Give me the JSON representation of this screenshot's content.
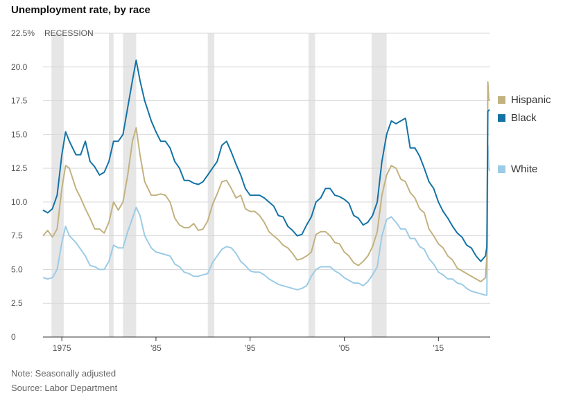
{
  "title": "Unemployment rate, by race",
  "notes": [
    "Note: Seasonally adjusted",
    "Source: Labor Department"
  ],
  "recession_label": "RECESSION",
  "colors": {
    "hispanic": "#c2b280",
    "black": "#1472a5",
    "white": "#9ccbe6",
    "recession": "#e6e6e6",
    "grid": "#d9d9d9"
  },
  "chart_data": {
    "type": "line",
    "title": "Unemployment rate, by race",
    "xlabel": "",
    "ylabel": "",
    "xlim": [
      1973.0,
      2020.5
    ],
    "ylim": [
      0,
      22.5
    ],
    "y_ticks": [
      0,
      2.5,
      5.0,
      7.5,
      10.0,
      12.5,
      15.0,
      17.5,
      20.0,
      22.5
    ],
    "y_tick_labels": [
      "0",
      "2.5",
      "5.0",
      "7.5",
      "10.0",
      "12.5",
      "15.0",
      "17.5",
      "20.0",
      "22.5%"
    ],
    "x_ticks": [
      1975,
      1985,
      1995,
      2005,
      2015
    ],
    "x_tick_labels": [
      "1975",
      "'85",
      "'95",
      "'05",
      "'15"
    ],
    "recessions": [
      [
        1973.9,
        1975.2
      ],
      [
        1980.0,
        1980.5
      ],
      [
        1981.5,
        1982.9
      ],
      [
        1990.5,
        1991.2
      ],
      [
        2001.2,
        2001.9
      ],
      [
        2007.9,
        2009.5
      ]
    ],
    "legend": [
      "Hispanic",
      "Black",
      "White"
    ],
    "series": [
      {
        "name": "Hispanic",
        "x": [
          1973.0,
          1973.5,
          1974.0,
          1974.5,
          1975.0,
          1975.4,
          1975.8,
          1976.5,
          1977.0,
          1977.5,
          1978.0,
          1978.5,
          1979.0,
          1979.5,
          1980.0,
          1980.5,
          1981.0,
          1981.5,
          1982.0,
          1982.5,
          1982.9,
          1983.3,
          1983.8,
          1984.5,
          1985.0,
          1985.5,
          1986.0,
          1986.5,
          1987.0,
          1987.5,
          1988.0,
          1988.5,
          1989.0,
          1989.5,
          1990.0,
          1990.5,
          1991.0,
          1991.5,
          1992.0,
          1992.5,
          1993.0,
          1993.5,
          1994.0,
          1994.5,
          1995.0,
          1995.5,
          1996.0,
          1996.5,
          1997.0,
          1997.5,
          1998.0,
          1998.5,
          1999.0,
          1999.5,
          2000.0,
          2000.5,
          2001.0,
          2001.5,
          2002.0,
          2002.5,
          2003.0,
          2003.5,
          2004.0,
          2004.5,
          2005.0,
          2005.5,
          2006.0,
          2006.5,
          2007.0,
          2007.5,
          2008.0,
          2008.5,
          2009.0,
          2009.5,
          2010.0,
          2010.5,
          2011.0,
          2011.5,
          2012.0,
          2012.5,
          2013.0,
          2013.5,
          2014.0,
          2014.5,
          2015.0,
          2015.5,
          2016.0,
          2016.5,
          2017.0,
          2017.5,
          2018.0,
          2018.5,
          2019.0,
          2019.5,
          2020.0,
          2020.15,
          2020.25,
          2020.35,
          2020.45
        ],
        "y": [
          7.5,
          7.9,
          7.4,
          8.0,
          11.0,
          12.7,
          12.5,
          11.0,
          10.3,
          9.5,
          8.8,
          8.0,
          8.0,
          7.7,
          8.5,
          10.0,
          9.4,
          10.0,
          12.0,
          14.5,
          15.5,
          13.5,
          11.5,
          10.5,
          10.5,
          10.6,
          10.5,
          10.0,
          8.8,
          8.3,
          8.1,
          8.1,
          8.4,
          7.9,
          8.0,
          8.6,
          9.8,
          10.6,
          11.5,
          11.6,
          11.0,
          10.3,
          10.5,
          9.5,
          9.3,
          9.3,
          9.0,
          8.5,
          7.8,
          7.5,
          7.2,
          6.8,
          6.6,
          6.2,
          5.7,
          5.8,
          6.0,
          6.3,
          7.6,
          7.8,
          7.8,
          7.5,
          7.0,
          6.9,
          6.3,
          6.0,
          5.5,
          5.3,
          5.6,
          6.0,
          6.7,
          7.8,
          10.5,
          12.0,
          12.7,
          12.5,
          11.7,
          11.5,
          10.7,
          10.3,
          9.5,
          9.2,
          8.0,
          7.5,
          6.9,
          6.6,
          6.0,
          5.7,
          5.1,
          4.9,
          4.7,
          4.5,
          4.3,
          4.1,
          4.4,
          6.0,
          18.9,
          17.6,
          17.5
        ]
      },
      {
        "name": "Black",
        "x": [
          1973.0,
          1973.5,
          1974.0,
          1974.5,
          1975.0,
          1975.4,
          1975.8,
          1976.5,
          1977.0,
          1977.5,
          1978.0,
          1978.5,
          1979.0,
          1979.5,
          1980.0,
          1980.5,
          1981.0,
          1981.5,
          1982.0,
          1982.5,
          1982.9,
          1983.3,
          1983.8,
          1984.5,
          1985.0,
          1985.5,
          1986.0,
          1986.5,
          1987.0,
          1987.5,
          1988.0,
          1988.5,
          1989.0,
          1989.5,
          1990.0,
          1990.5,
          1991.0,
          1991.5,
          1992.0,
          1992.5,
          1993.0,
          1993.5,
          1994.0,
          1994.5,
          1995.0,
          1995.5,
          1996.0,
          1996.5,
          1997.0,
          1997.5,
          1998.0,
          1998.5,
          1999.0,
          1999.5,
          2000.0,
          2000.5,
          2001.0,
          2001.5,
          2002.0,
          2002.5,
          2003.0,
          2003.5,
          2004.0,
          2004.5,
          2005.0,
          2005.5,
          2006.0,
          2006.5,
          2007.0,
          2007.5,
          2008.0,
          2008.5,
          2009.0,
          2009.5,
          2010.0,
          2010.5,
          2011.0,
          2011.5,
          2012.0,
          2012.5,
          2013.0,
          2013.5,
          2014.0,
          2014.5,
          2015.0,
          2015.5,
          2016.0,
          2016.5,
          2017.0,
          2017.5,
          2018.0,
          2018.5,
          2019.0,
          2019.5,
          2020.0,
          2020.15,
          2020.25,
          2020.35,
          2020.45
        ],
        "y": [
          9.4,
          9.2,
          9.5,
          10.5,
          13.5,
          15.2,
          14.5,
          13.5,
          13.5,
          14.5,
          13.0,
          12.6,
          12.0,
          12.2,
          13.0,
          14.5,
          14.5,
          15.0,
          17.0,
          19.0,
          20.5,
          19.0,
          17.5,
          16.0,
          15.2,
          14.5,
          14.5,
          14.0,
          13.0,
          12.5,
          11.6,
          11.6,
          11.4,
          11.3,
          11.5,
          12.0,
          12.5,
          13.0,
          14.2,
          14.5,
          13.7,
          12.8,
          12.0,
          11.0,
          10.5,
          10.5,
          10.5,
          10.3,
          10.0,
          9.7,
          9.0,
          8.9,
          8.2,
          7.9,
          7.5,
          7.6,
          8.3,
          8.9,
          10.0,
          10.3,
          11.0,
          11.0,
          10.5,
          10.4,
          10.2,
          9.9,
          9.0,
          8.8,
          8.3,
          8.5,
          9.0,
          10.0,
          13.0,
          15.0,
          16.0,
          15.8,
          16.0,
          16.2,
          14.0,
          14.0,
          13.4,
          12.5,
          11.5,
          11.0,
          10.0,
          9.3,
          8.8,
          8.2,
          7.7,
          7.4,
          6.8,
          6.6,
          6.0,
          5.6,
          6.0,
          6.7,
          16.7,
          16.8,
          16.8
        ]
      },
      {
        "name": "White",
        "x": [
          1973.0,
          1973.5,
          1974.0,
          1974.5,
          1975.0,
          1975.4,
          1975.8,
          1976.5,
          1977.0,
          1977.5,
          1978.0,
          1978.5,
          1979.0,
          1979.5,
          1980.0,
          1980.5,
          1981.0,
          1981.5,
          1982.0,
          1982.5,
          1982.9,
          1983.3,
          1983.8,
          1984.5,
          1985.0,
          1985.5,
          1986.0,
          1986.5,
          1987.0,
          1987.5,
          1988.0,
          1988.5,
          1989.0,
          1989.5,
          1990.0,
          1990.5,
          1991.0,
          1991.5,
          1992.0,
          1992.5,
          1993.0,
          1993.5,
          1994.0,
          1994.5,
          1995.0,
          1995.5,
          1996.0,
          1996.5,
          1997.0,
          1997.5,
          1998.0,
          1998.5,
          1999.0,
          1999.5,
          2000.0,
          2000.5,
          2001.0,
          2001.5,
          2002.0,
          2002.5,
          2003.0,
          2003.5,
          2004.0,
          2004.5,
          2005.0,
          2005.5,
          2006.0,
          2006.5,
          2007.0,
          2007.5,
          2008.0,
          2008.5,
          2009.0,
          2009.5,
          2010.0,
          2010.5,
          2011.0,
          2011.5,
          2012.0,
          2012.5,
          2013.0,
          2013.5,
          2014.0,
          2014.5,
          2015.0,
          2015.5,
          2016.0,
          2016.5,
          2017.0,
          2017.5,
          2018.0,
          2018.5,
          2019.0,
          2019.5,
          2020.0,
          2020.15,
          2020.25,
          2020.35,
          2020.45
        ],
        "y": [
          4.4,
          4.3,
          4.4,
          5.0,
          7.0,
          8.2,
          7.5,
          7.0,
          6.5,
          6.0,
          5.3,
          5.2,
          5.0,
          5.0,
          5.6,
          6.8,
          6.6,
          6.6,
          7.8,
          8.8,
          9.6,
          9.0,
          7.5,
          6.6,
          6.3,
          6.2,
          6.1,
          6.0,
          5.4,
          5.2,
          4.8,
          4.7,
          4.5,
          4.5,
          4.6,
          4.7,
          5.5,
          6.0,
          6.5,
          6.7,
          6.6,
          6.2,
          5.6,
          5.3,
          4.9,
          4.8,
          4.8,
          4.6,
          4.3,
          4.1,
          3.9,
          3.8,
          3.7,
          3.6,
          3.5,
          3.6,
          3.8,
          4.5,
          5.0,
          5.2,
          5.2,
          5.2,
          4.9,
          4.7,
          4.4,
          4.2,
          4.0,
          4.0,
          3.8,
          4.1,
          4.6,
          5.2,
          7.5,
          8.7,
          8.9,
          8.5,
          8.0,
          8.0,
          7.3,
          7.3,
          6.7,
          6.5,
          5.8,
          5.4,
          4.8,
          4.6,
          4.3,
          4.3,
          4.0,
          3.9,
          3.6,
          3.4,
          3.3,
          3.2,
          3.1,
          3.1,
          14.2,
          12.5,
          12.3
        ]
      }
    ]
  }
}
